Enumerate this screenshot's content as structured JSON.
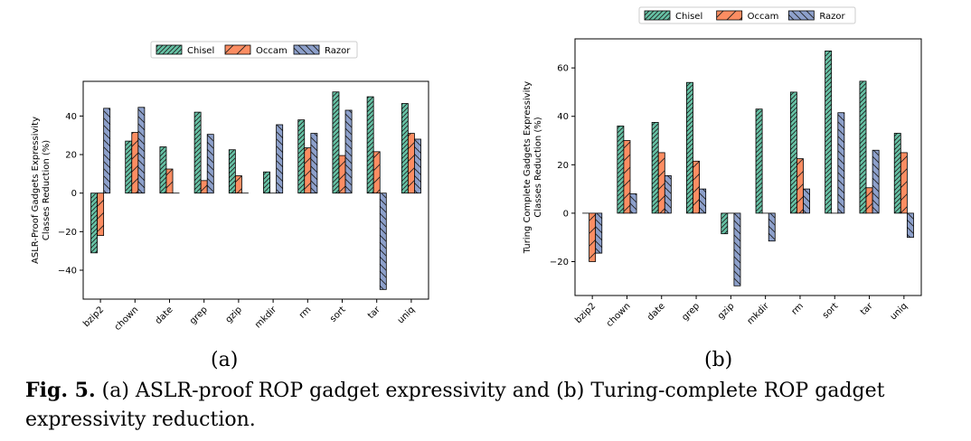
{
  "figure": {
    "sublabel_a": "(a)",
    "sublabel_b": "(b)",
    "caption_prefix": "Fig. 5.",
    "caption_text": "(a) ASLR-proof ROP gadget expressivity and (b) Turing-complete ROP gadget expressivity reduction."
  },
  "colors": {
    "Chisel": "#66c2a5",
    "Occam": "#fc8d62",
    "Razor": "#8da0cb"
  },
  "chart_data": [
    {
      "id": "a",
      "type": "bar",
      "categories": [
        "bzip2",
        "chown",
        "date",
        "grep",
        "gzip",
        "mkdir",
        "rm",
        "sort",
        "tar",
        "uniq"
      ],
      "series": [
        {
          "name": "Chisel",
          "values": [
            -31,
            27,
            24,
            42,
            22.5,
            11,
            38,
            52.5,
            50,
            46.5
          ],
          "hatch": "////"
        },
        {
          "name": "Occam",
          "values": [
            -22,
            31.5,
            12.5,
            6.5,
            9,
            0,
            23.5,
            19.5,
            21.5,
            31
          ],
          "hatch": "/"
        },
        {
          "name": "Razor",
          "values": [
            44,
            44.5,
            0,
            30.5,
            0,
            35.5,
            31,
            43,
            -50,
            28
          ],
          "hatch": "\\\\"
        }
      ],
      "ylabel": "ASLR-Proof Gadgets Expressivity\nClasses Reduction (%)",
      "xlabel": "",
      "ylim": [
        -55,
        58
      ],
      "yticks": [
        -40,
        -20,
        0,
        20,
        40
      ],
      "ytick_labels": [
        "−40",
        "−20",
        "0",
        "20",
        "40"
      ],
      "legend": "top-center",
      "grid": false
    },
    {
      "id": "b",
      "type": "bar",
      "categories": [
        "bzip2",
        "chown",
        "date",
        "grep",
        "gzip",
        "mkdir",
        "rm",
        "sort",
        "tar",
        "uniq"
      ],
      "series": [
        {
          "name": "Chisel",
          "values": [
            0,
            36,
            37.5,
            54,
            -8.5,
            43,
            50,
            67,
            54.5,
            33
          ],
          "hatch": "////"
        },
        {
          "name": "Occam",
          "values": [
            -20,
            30,
            25,
            21.5,
            0,
            0,
            22.5,
            0,
            10.5,
            25
          ],
          "hatch": "/"
        },
        {
          "name": "Razor",
          "values": [
            -16.5,
            8,
            15.5,
            10,
            -30,
            -11.5,
            10,
            41.5,
            26,
            -10
          ],
          "hatch": "\\\\"
        }
      ],
      "ylabel": "Turing Complete Gadgets Expressivity\nClasses Reduction (%)",
      "xlabel": "",
      "ylim": [
        -34,
        72
      ],
      "yticks": [
        -20,
        0,
        20,
        40,
        60
      ],
      "ytick_labels": [
        "−20",
        "0",
        "20",
        "40",
        "60"
      ],
      "legend": "top-center",
      "grid": false
    }
  ]
}
